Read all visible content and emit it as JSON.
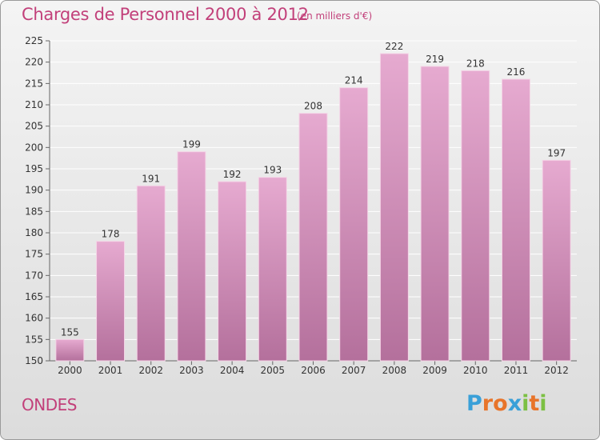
{
  "title": "Charges de Personnel 2000 à 2012",
  "subtitle": "(en milliers d'€)",
  "commune": "ONDES",
  "logo": {
    "letters": [
      "P",
      "r",
      "o",
      "x",
      "i",
      "t",
      "i"
    ],
    "colors": [
      "#3aa0d8",
      "#e8742a",
      "#e8742a",
      "#3aa0d8",
      "#7cc043",
      "#e8742a",
      "#7cc043"
    ]
  },
  "colors": {
    "bar": "#e1a3c8",
    "bar_dark": "#b8739f",
    "title": "#c2407a"
  },
  "chart_data": {
    "type": "bar",
    "categories": [
      "2000",
      "2001",
      "2002",
      "2003",
      "2004",
      "2005",
      "2006",
      "2007",
      "2008",
      "2009",
      "2010",
      "2011",
      "2012"
    ],
    "values": [
      155,
      178,
      191,
      199,
      192,
      193,
      208,
      214,
      222,
      219,
      218,
      216,
      197
    ],
    "ylim": [
      150,
      225
    ],
    "yticks": [
      150,
      155,
      160,
      165,
      170,
      175,
      180,
      185,
      190,
      195,
      200,
      205,
      210,
      215,
      220,
      225
    ],
    "grid": true
  }
}
